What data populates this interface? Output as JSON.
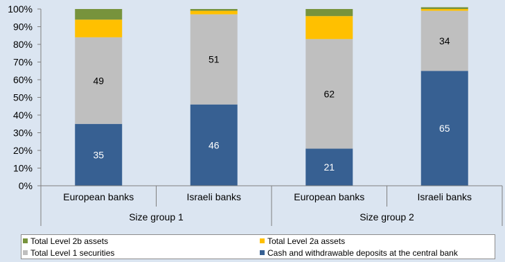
{
  "chart_data": {
    "type": "bar",
    "stacked": true,
    "categories": [
      "European banks",
      "Israeli banks",
      "European banks",
      "Israeli banks"
    ],
    "groups": [
      {
        "label": "Size group 1",
        "category_indices": [
          0,
          1
        ]
      },
      {
        "label": "Size group 2",
        "category_indices": [
          2,
          3
        ]
      }
    ],
    "series": [
      {
        "name": "Cash and withdrawable deposits at the central bank",
        "values": [
          35,
          46,
          21,
          65
        ],
        "labels": [
          "35",
          "46",
          "21",
          "65"
        ],
        "color": "#376092",
        "label_color": "#ffffff"
      },
      {
        "name": "Total Level 1 securities",
        "values": [
          49,
          51,
          62,
          34
        ],
        "labels": [
          "49",
          "51",
          "62",
          "34"
        ],
        "color": "#bfbfbf",
        "label_color": "#000000"
      },
      {
        "name": "Total Level 2a assets",
        "values": [
          10,
          2,
          13,
          1
        ],
        "color": "#ffc000"
      },
      {
        "name": "Total Level 2b assets",
        "values": [
          6,
          1,
          4,
          1
        ],
        "color": "#77933c"
      }
    ],
    "y_ticks": [
      "0%",
      "10%",
      "20%",
      "30%",
      "40%",
      "50%",
      "60%",
      "70%",
      "80%",
      "90%",
      "100%"
    ],
    "ylim": [
      0,
      100
    ],
    "grid": false,
    "legend": {
      "placement": "bottom",
      "order": [
        3,
        2,
        1,
        0
      ]
    }
  }
}
